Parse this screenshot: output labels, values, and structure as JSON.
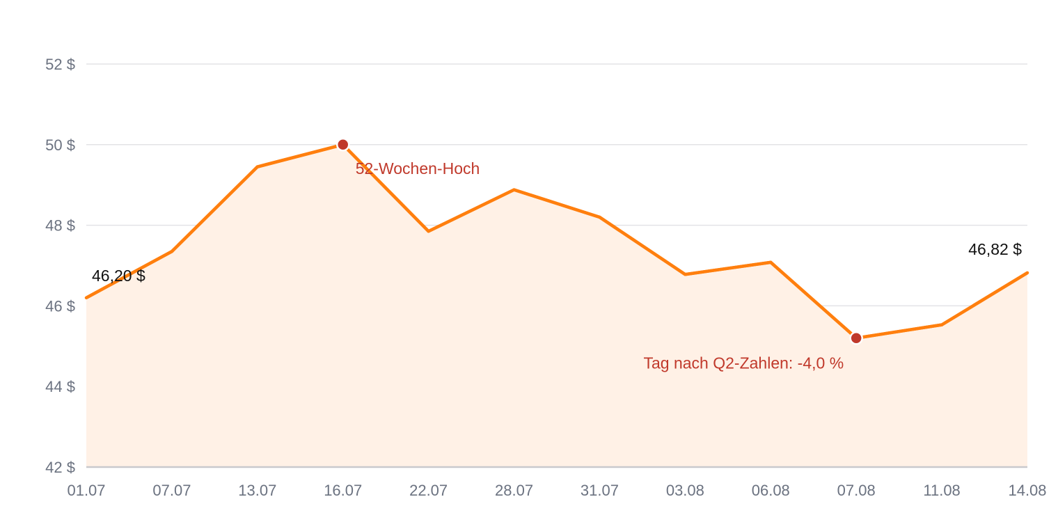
{
  "chart_data": {
    "type": "line",
    "area_fill": true,
    "colors": {
      "line": "#ff7f0e",
      "area": "#fff1e6",
      "marker": "#c0392b",
      "annotation": "#c0392b",
      "grid": "#e3e3e6",
      "tick": "#6b7280"
    },
    "categories": [
      "01.07",
      "07.07",
      "13.07",
      "16.07",
      "22.07",
      "28.07",
      "31.07",
      "03.08",
      "06.08",
      "07.08",
      "11.08",
      "14.08"
    ],
    "series": [
      {
        "values": [
          46.2,
          47.35,
          49.45,
          50.0,
          47.85,
          48.88,
          48.2,
          46.78,
          47.08,
          45.2,
          45.53,
          46.82
        ]
      }
    ],
    "ylim": [
      42,
      52
    ],
    "y_ticks": [
      42,
      44,
      46,
      48,
      50,
      52
    ],
    "y_tick_labels": [
      "42 $",
      "44 $",
      "46 $",
      "48 $",
      "50 $",
      "52 $"
    ],
    "grid": true,
    "end_labels": {
      "first": "46,20 $",
      "last": "46,82 $"
    },
    "annotations": [
      {
        "index": 3,
        "text": "52-Wochen-Hoch"
      },
      {
        "index": 9,
        "text": "Tag nach Q2-Zahlen: -4,0 %"
      }
    ]
  }
}
